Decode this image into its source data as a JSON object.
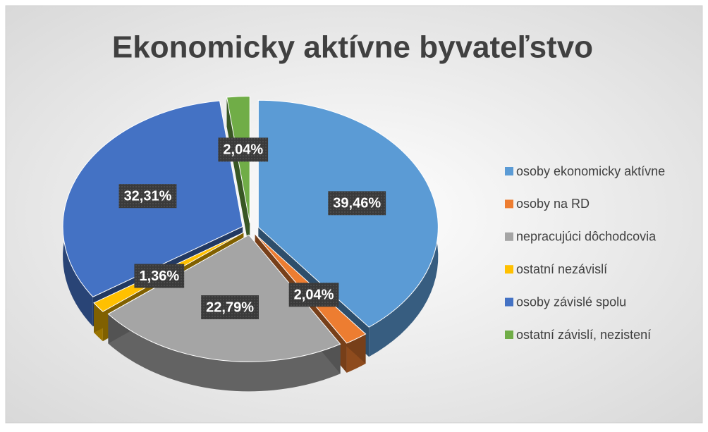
{
  "chart_data": {
    "type": "pie3d",
    "title": "Ekonomicky aktívne byvateľstvo",
    "categories": [
      "osoby ekonomicky aktívne",
      "osoby na RD",
      "nepracujúci dôchodcovia",
      "ostatní nezávislí",
      "osoby závislé spolu",
      "ostatní závislí, nezistení"
    ],
    "values": [
      39.46,
      2.04,
      22.79,
      1.36,
      32.31,
      2.04
    ],
    "value_labels": [
      "39,46%",
      "2,04%",
      "22,79%",
      "1,36%",
      "32,31%",
      "2,04%"
    ],
    "colors": [
      "#5b9bd5",
      "#ed7d31",
      "#a5a5a5",
      "#ffc000",
      "#4472c4",
      "#70ad47"
    ],
    "legend": "right"
  }
}
